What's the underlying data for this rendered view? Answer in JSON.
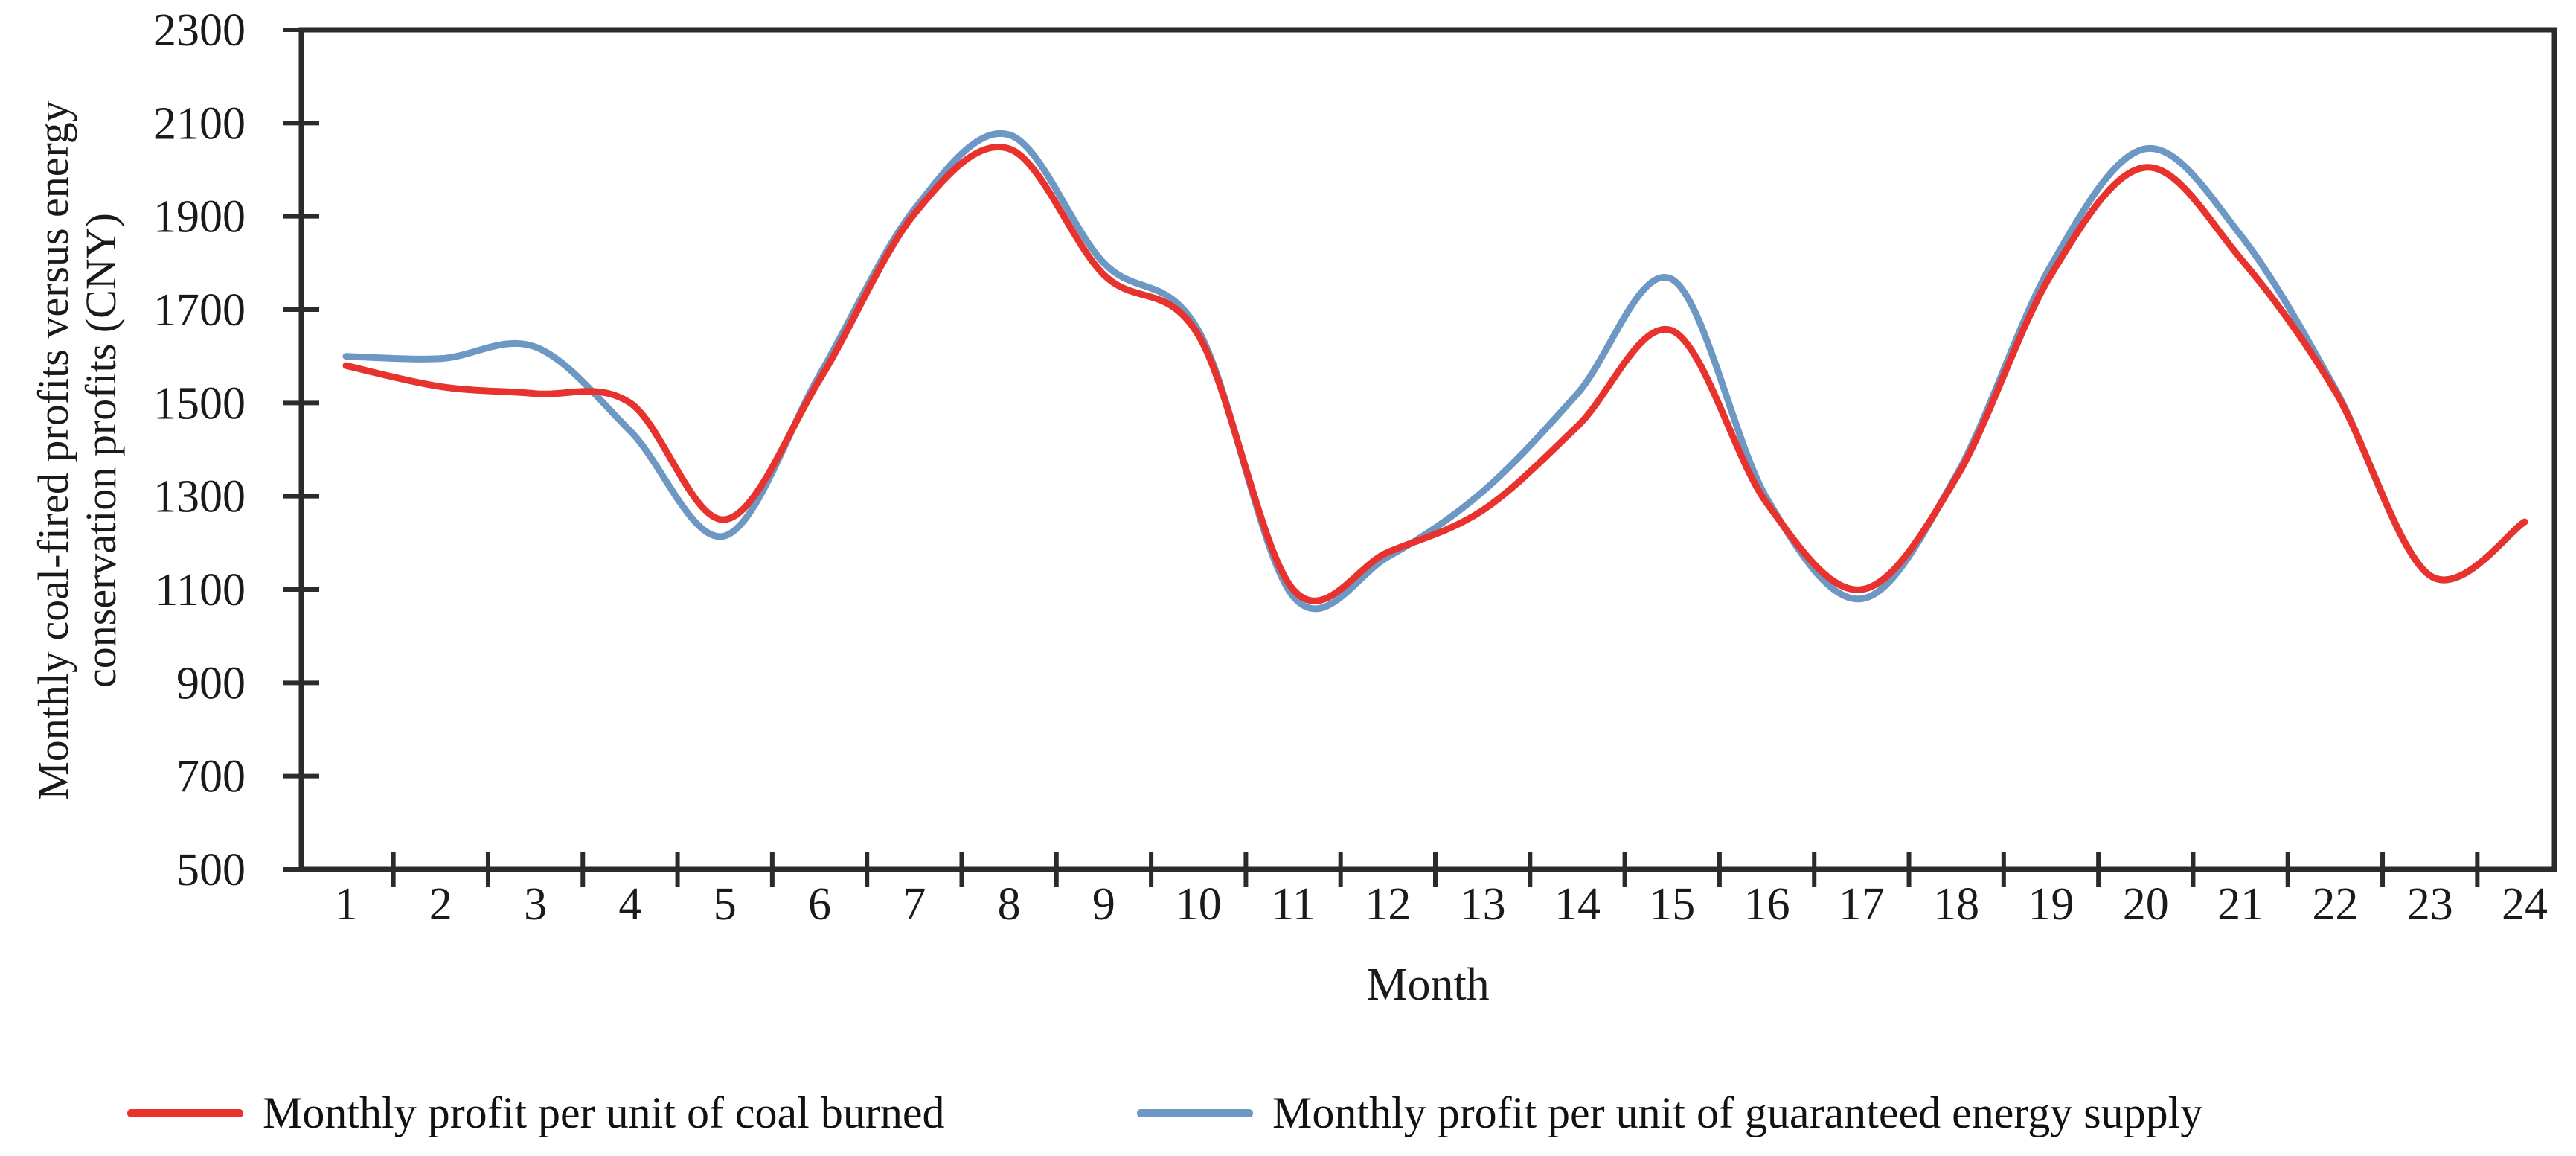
{
  "chart_data": {
    "type": "line",
    "title": "",
    "xlabel": "Month",
    "ylabel": "Monthly coal-fired profits versus energy conservation profits (CNY)",
    "ylabel_lines": [
      "Monthly coal-fired profits versus energy",
      "conservation profits (CNY)"
    ],
    "categories": [
      1,
      2,
      3,
      4,
      5,
      6,
      7,
      8,
      9,
      10,
      11,
      12,
      13,
      14,
      15,
      16,
      17,
      18,
      19,
      20,
      21,
      22,
      23,
      24
    ],
    "y_ticks": [
      500,
      700,
      900,
      1100,
      1300,
      1500,
      1700,
      1900,
      2100,
      2300
    ],
    "ylim": [
      500,
      2300
    ],
    "xlim_categories": 24,
    "grid": false,
    "smooth": true,
    "legend_position": "bottom",
    "axis_color": "#2b2b2b",
    "text_color": "#1a1a1a",
    "series": [
      {
        "name": "Monthly profit per unit of coal burned",
        "color": "#e8322e",
        "values": [
          1580,
          1535,
          1520,
          1500,
          1250,
          1550,
          1905,
          2045,
          1775,
          1645,
          1100,
          1180,
          1270,
          1450,
          1655,
          1285,
          1100,
          1340,
          1775,
          2005,
          1810,
          1525,
          1130,
          1245
        ]
      },
      {
        "name": "Monthly profit per unit of guaranteed energy supply",
        "color": "#6e98c4",
        "values": [
          1600,
          1595,
          1620,
          1440,
          1215,
          1560,
          1915,
          2075,
          1800,
          1655,
          1085,
          1170,
          1310,
          1520,
          1765,
          1295,
          1080,
          1345,
          1795,
          2045,
          1860,
          1530,
          1130,
          1245
        ]
      }
    ]
  }
}
